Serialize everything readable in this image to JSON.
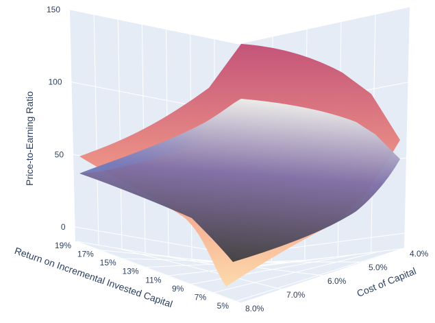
{
  "chart_data": {
    "type": "surface",
    "title": "",
    "axes": {
      "x": {
        "title": "Cost of Capital",
        "ticks": [
          "4.0%",
          "5.0%",
          "6.0%",
          "7.0%",
          "8.0%"
        ],
        "range": [
          4.0,
          8.0
        ]
      },
      "y": {
        "title": "Return on Incremental Invested Capital",
        "ticks": [
          "5%",
          "7%",
          "9%",
          "11%",
          "13%",
          "15%",
          "17%",
          "19%"
        ],
        "range": [
          5,
          19
        ]
      },
      "z": {
        "title": "Price-to-Earning Ratio",
        "ticks": [
          "0",
          "50",
          "100",
          "150"
        ],
        "range": [
          -10,
          150
        ]
      }
    },
    "grid": true,
    "colors": {
      "scene_background": "#e5ecf6",
      "gridline": "#ffffff",
      "upper_surface_low": "#fdd9a8",
      "upper_surface_mid": "#f59a83",
      "upper_surface_high": "#c24c72",
      "lower_surface_low": "#3b3b3b",
      "lower_surface_mid": "#7e6fa8",
      "lower_surface_high": "#edf2ee"
    },
    "series": [
      {
        "x": [
          8.0,
          7.0,
          6.0,
          5.0,
          4.0
        ],
        "y": [
          19,
          15,
          11,
          7,
          5
        ],
        "z": [
          [
            24,
            28,
            36,
            44,
            52
          ],
          [
            20,
            28,
            40,
            58,
            88
          ],
          [
            16,
            26,
            44,
            72,
            110
          ],
          [
            10,
            22,
            42,
            78,
            125
          ],
          [
            -10,
            10,
            35,
            70,
            45
          ]
        ]
      },
      {
        "x": [
          8.0,
          7.0,
          6.0,
          5.0,
          4.0
        ],
        "y": [
          19,
          15,
          11,
          7,
          5
        ],
        "z": [
          [
            22,
            24,
            26,
            28,
            32
          ],
          [
            12,
            20,
            32,
            46,
            64
          ],
          [
            8,
            18,
            32,
            50,
            72
          ],
          [
            2,
            12,
            28,
            48,
            70
          ],
          [
            -4,
            6,
            22,
            40,
            40
          ]
        ]
      }
    ]
  }
}
